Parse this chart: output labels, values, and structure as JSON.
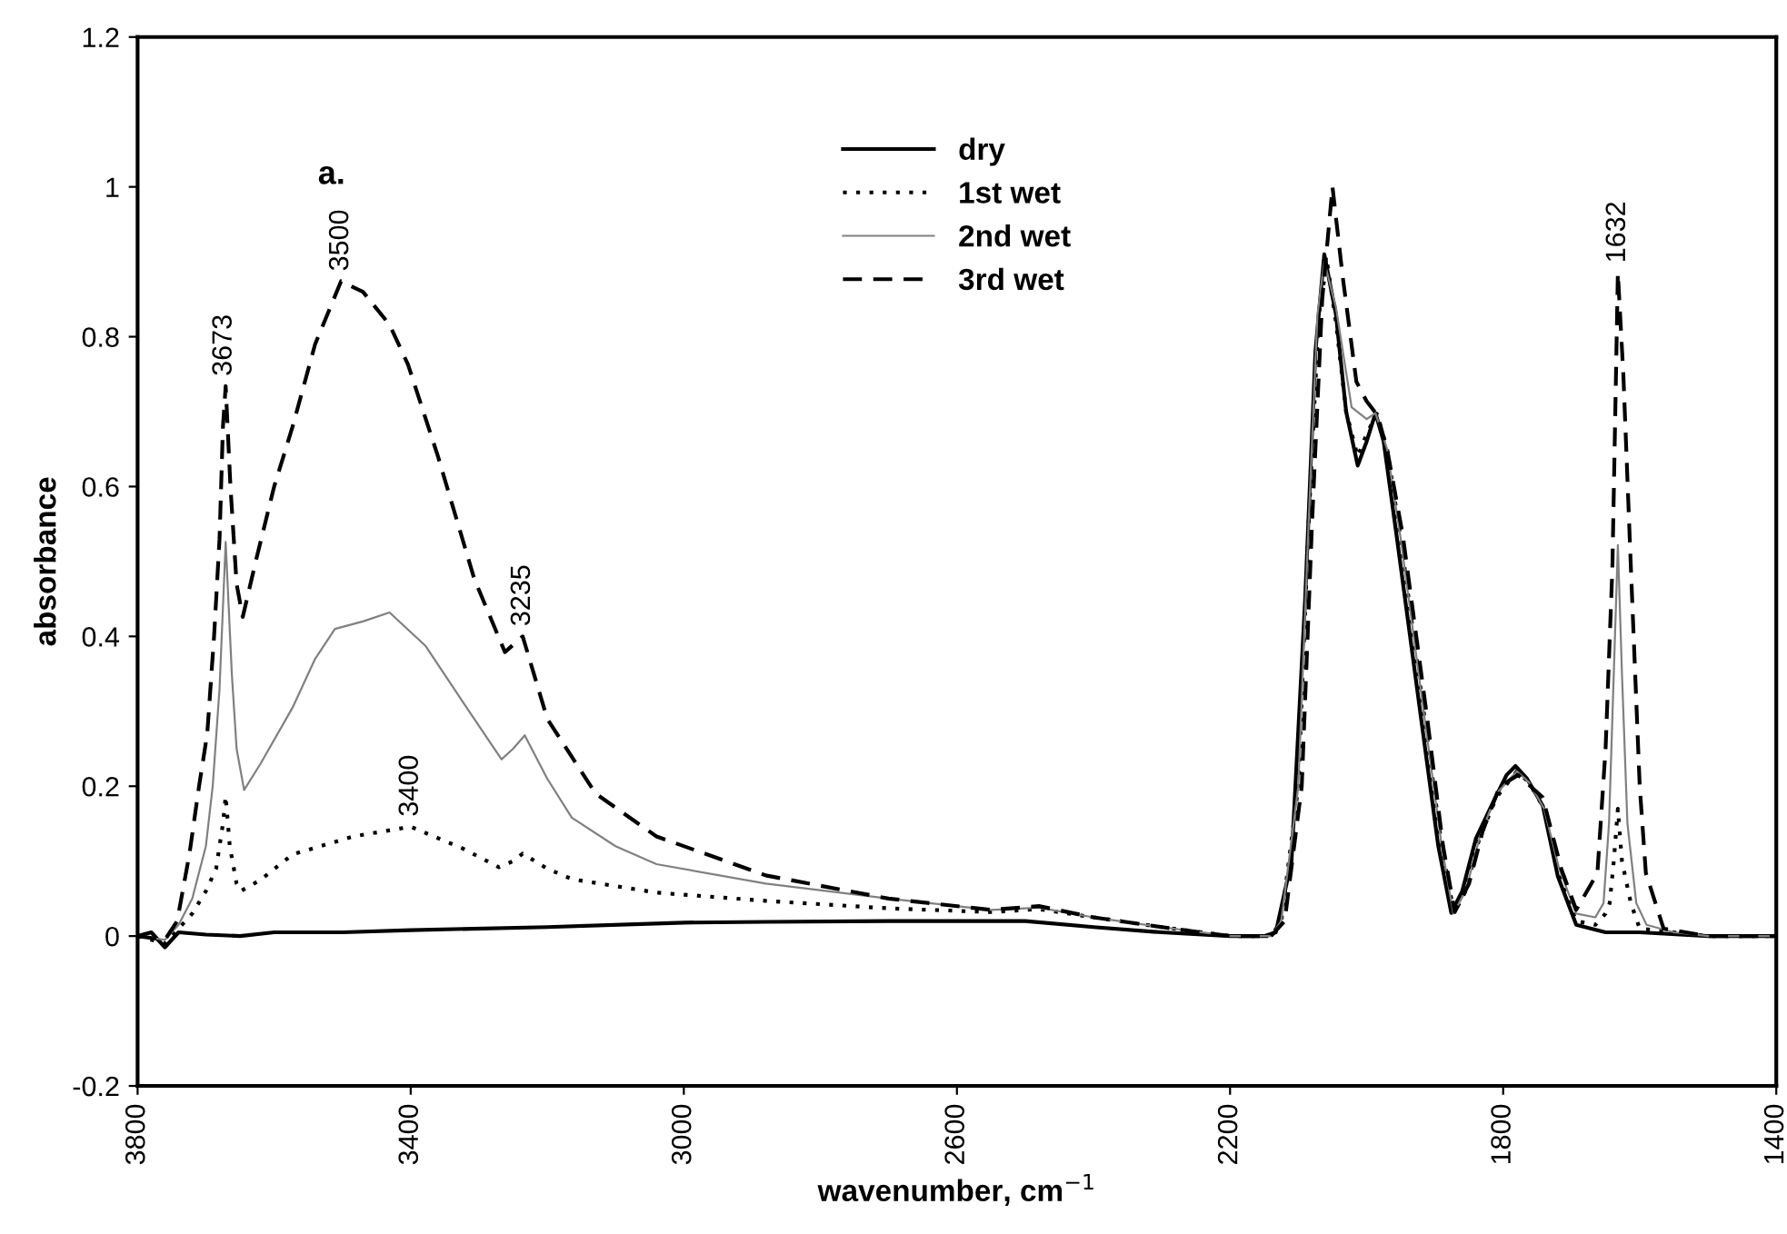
{
  "chart_data": {
    "type": "line",
    "xlabel": "wavenumber, cm$^{−1}$",
    "ylabel": "absorbance",
    "xlim": [
      3800,
      1400
    ],
    "xticks": [
      3800,
      3400,
      3000,
      2600,
      2200,
      1800,
      1400
    ],
    "ylim": [
      -0.2,
      1.2
    ],
    "yticks": [
      -0.2,
      0,
      0.2,
      0.4,
      0.6,
      0.8,
      1,
      1.2
    ],
    "grid": false,
    "legend": "top",
    "annotations": [
      "a.",
      {
        "text": "3673",
        "x": 3673,
        "y": 0.734
      },
      {
        "text": "3500",
        "x": 3502,
        "y": 0.874
      },
      {
        "text": "3235",
        "x": 3236,
        "y": 0.4
      },
      {
        "text": "3400",
        "x": 3400,
        "y": 0.146
      },
      {
        "text": "1632",
        "x": 1632,
        "y": 0.885
      }
    ],
    "series": [
      {
        "name": "dry",
        "color": "#000000",
        "line_style": "solid",
        "x": [
          3800,
          3780,
          3760,
          3740,
          3700,
          3650,
          3600,
          3500,
          3400,
          3200,
          3000,
          2880,
          2700,
          2500,
          2400,
          2300,
          2200,
          2150,
          2133,
          2110,
          2090,
          2075,
          2062,
          2045,
          2030,
          2013,
          2000,
          1987,
          1975,
          1956,
          1920,
          1895,
          1876,
          1860,
          1840,
          1813,
          1795,
          1782,
          1765,
          1742,
          1720,
          1693,
          1650,
          1600,
          1500,
          1400
        ],
        "values": [
          0,
          0.005,
          -0.015,
          0.005,
          0.002,
          0,
          0.005,
          0.005,
          0.008,
          0.012,
          0.018,
          0.019,
          0.02,
          0.02,
          0.012,
          0.005,
          0,
          0,
          0.005,
          0.1,
          0.45,
          0.78,
          0.91,
          0.83,
          0.7,
          0.628,
          0.66,
          0.698,
          0.66,
          0.534,
          0.289,
          0.12,
          0.031,
          0.06,
          0.13,
          0.182,
          0.215,
          0.227,
          0.21,
          0.174,
          0.08,
          0.015,
          0.005,
          0.005,
          0,
          0
        ]
      },
      {
        "name": "1st wet",
        "color": "#000000",
        "line_style": "dotted",
        "x": [
          3800,
          3760,
          3740,
          3720,
          3700,
          3685,
          3675,
          3671,
          3665,
          3655,
          3649,
          3620,
          3573,
          3484,
          3400,
          3324,
          3271,
          3250,
          3236,
          3200,
          3164,
          3040,
          2880,
          2700,
          2550,
          2480,
          2400,
          2300,
          2200,
          2140,
          2125,
          2100,
          2085,
          2070,
          2058,
          2045,
          2030,
          2013,
          2000,
          1985,
          1970,
          1950,
          1915,
          1890,
          1872,
          1855,
          1835,
          1810,
          1780,
          1762,
          1740,
          1718,
          1693,
          1665,
          1650,
          1644,
          1638,
          1632,
          1626,
          1613,
          1600,
          1550,
          1500,
          1400
        ],
        "values": [
          0,
          -0.01,
          0.01,
          0.03,
          0.06,
          0.09,
          0.15,
          0.187,
          0.12,
          0.07,
          0.06,
          0.075,
          0.109,
          0.133,
          0.146,
          0.117,
          0.092,
          0.1,
          0.11,
          0.09,
          0.076,
          0.058,
          0.047,
          0.037,
          0.032,
          0.036,
          0.025,
          0.012,
          0,
          0,
          0.02,
          0.2,
          0.55,
          0.83,
          0.9,
          0.82,
          0.7,
          0.64,
          0.67,
          0.697,
          0.65,
          0.53,
          0.29,
          0.12,
          0.03,
          0.06,
          0.13,
          0.185,
          0.22,
          0.205,
          0.17,
          0.08,
          0.02,
          0.015,
          0.03,
          0.044,
          0.1,
          0.17,
          0.1,
          0.044,
          0.01,
          0.005,
          0,
          0
        ]
      },
      {
        "name": "2nd wet",
        "color": "#808080",
        "line_style": "solid",
        "x": [
          3800,
          3760,
          3740,
          3720,
          3700,
          3690,
          3680,
          3671,
          3662,
          3655,
          3644,
          3620,
          3573,
          3540,
          3511,
          3470,
          3431,
          3378,
          3324,
          3267,
          3250,
          3233,
          3200,
          3164,
          3100,
          3040,
          2880,
          2700,
          2550,
          2480,
          2400,
          2300,
          2200,
          2140,
          2125,
          2100,
          2085,
          2072,
          2062,
          2045,
          2022,
          2000,
          1987,
          1970,
          1950,
          1915,
          1890,
          1873,
          1855,
          1835,
          1810,
          1780,
          1762,
          1740,
          1718,
          1693,
          1665,
          1653,
          1645,
          1638,
          1632,
          1626,
          1618,
          1605,
          1590,
          1550,
          1500,
          1400
        ],
        "values": [
          0,
          -0.005,
          0.015,
          0.05,
          0.12,
          0.2,
          0.33,
          0.526,
          0.35,
          0.25,
          0.195,
          0.23,
          0.305,
          0.37,
          0.41,
          0.42,
          0.432,
          0.387,
          0.313,
          0.236,
          0.25,
          0.268,
          0.21,
          0.158,
          0.12,
          0.096,
          0.07,
          0.05,
          0.035,
          0.038,
          0.025,
          0.012,
          0,
          0,
          0.02,
          0.2,
          0.55,
          0.83,
          0.9,
          0.84,
          0.706,
          0.69,
          0.698,
          0.65,
          0.53,
          0.29,
          0.12,
          0.03,
          0.06,
          0.13,
          0.19,
          0.22,
          0.205,
          0.17,
          0.09,
          0.03,
          0.025,
          0.044,
          0.15,
          0.35,
          0.522,
          0.35,
          0.15,
          0.044,
          0.015,
          0.005,
          0,
          0
        ]
      },
      {
        "name": "3rd wet",
        "color": "#000000",
        "line_style": "dashed",
        "x": [
          3800,
          3760,
          3742,
          3724,
          3710,
          3698,
          3688,
          3680,
          3675,
          3671,
          3664,
          3655,
          3646,
          3627,
          3600,
          3573,
          3540,
          3502,
          3470,
          3431,
          3404,
          3360,
          3307,
          3262,
          3236,
          3200,
          3129,
          3040,
          2880,
          2700,
          2550,
          2480,
          2400,
          2300,
          2200,
          2140,
          2120,
          2095,
          2080,
          2065,
          2050,
          2035,
          2015,
          2000,
          1984,
          1970,
          1947,
          1911,
          1888,
          1871,
          1850,
          1830,
          1805,
          1778,
          1760,
          1742,
          1715,
          1693,
          1662,
          1650,
          1640,
          1632,
          1624,
          1613,
          1600,
          1591,
          1565,
          1500,
          1400
        ],
        "values": [
          0,
          -0.005,
          0.02,
          0.11,
          0.2,
          0.27,
          0.4,
          0.53,
          0.68,
          0.734,
          0.6,
          0.47,
          0.426,
          0.5,
          0.6,
          0.68,
          0.79,
          0.874,
          0.86,
          0.816,
          0.763,
          0.64,
          0.477,
          0.379,
          0.4,
          0.29,
          0.19,
          0.133,
          0.081,
          0.05,
          0.035,
          0.04,
          0.025,
          0.012,
          0,
          0,
          0.02,
          0.2,
          0.55,
          0.85,
          1.0,
          0.88,
          0.74,
          0.714,
          0.695,
          0.65,
          0.535,
          0.289,
          0.12,
          0.032,
          0.07,
          0.14,
          0.2,
          0.215,
          0.2,
          0.185,
          0.09,
          0.035,
          0.084,
          0.25,
          0.493,
          0.885,
          0.75,
          0.493,
          0.2,
          0.084,
          0.01,
          0,
          0
        ]
      }
    ]
  }
}
